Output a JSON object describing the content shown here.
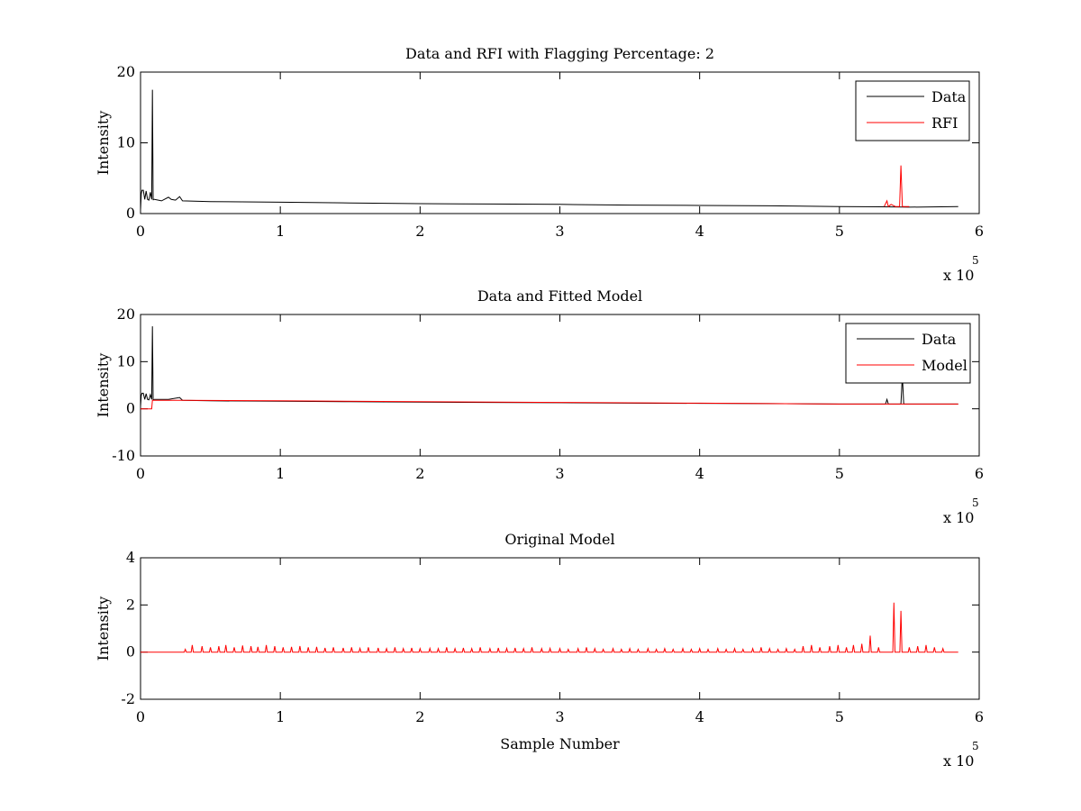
{
  "figure": {
    "background": "#ffffff"
  },
  "chart_data": [
    {
      "type": "line",
      "title": "Data and RFI with Flagging Percentage: 2",
      "xlabel": "",
      "ylabel": "Intensity",
      "xlim": [
        0,
        6
      ],
      "ylim": [
        0,
        20
      ],
      "xticks": [
        "0",
        "1",
        "2",
        "3",
        "4",
        "5",
        "6"
      ],
      "yticks": [
        "0",
        "10",
        "20"
      ],
      "x_multiplier": {
        "base": "x 10",
        "exponent": "5"
      },
      "legend": {
        "position": "top-right",
        "entries": [
          "Data",
          "RFI"
        ]
      },
      "series": [
        {
          "name": "Data",
          "color": "#000000",
          "x": [
            0,
            0.005,
            0.01,
            0.02,
            0.03,
            0.04,
            0.05,
            0.06,
            0.07,
            0.08,
            0.085,
            0.09,
            0.092,
            0.1,
            0.15,
            0.2,
            0.22,
            0.25,
            0.28,
            0.3,
            0.5,
            1.0,
            1.5,
            2.0,
            2.5,
            3.0,
            3.5,
            4.0,
            4.5,
            5.0,
            5.3,
            5.5,
            5.85
          ],
          "y": [
            0.5,
            2.8,
            3.3,
            3.3,
            2.0,
            3.2,
            2.0,
            1.9,
            3.0,
            2.0,
            17.5,
            1.9,
            2.0,
            2.0,
            1.8,
            2.3,
            2.0,
            1.9,
            2.4,
            1.8,
            1.7,
            1.6,
            1.5,
            1.4,
            1.35,
            1.3,
            1.2,
            1.15,
            1.1,
            1.0,
            0.95,
            0.9,
            1.0
          ]
        },
        {
          "name": "RFI",
          "color": "#ff0000",
          "x": [
            5.32,
            5.34,
            5.35,
            5.37,
            5.4,
            5.43,
            5.44,
            5.45,
            5.46,
            5.5
          ],
          "y": [
            1.0,
            1.8,
            1.0,
            1.3,
            1.0,
            1.0,
            6.8,
            1.0,
            1.0,
            1.0
          ]
        }
      ]
    },
    {
      "type": "line",
      "title": "Data and Fitted Model",
      "xlabel": "",
      "ylabel": "Intensity",
      "xlim": [
        0,
        6
      ],
      "ylim": [
        -10,
        20
      ],
      "xticks": [
        "0",
        "1",
        "2",
        "3",
        "4",
        "5",
        "6"
      ],
      "yticks": [
        "-10",
        "0",
        "10",
        "20"
      ],
      "x_multiplier": {
        "base": "x 10",
        "exponent": "5"
      },
      "legend": {
        "position": "top-right",
        "entries": [
          "Data",
          "Model"
        ]
      },
      "series": [
        {
          "name": "Data",
          "color": "#000000",
          "x": [
            0,
            0.005,
            0.01,
            0.02,
            0.03,
            0.04,
            0.05,
            0.06,
            0.07,
            0.08,
            0.085,
            0.09,
            0.1,
            0.2,
            0.28,
            0.3,
            0.5,
            1.0,
            1.5,
            2.0,
            2.5,
            3.0,
            3.5,
            4.0,
            4.5,
            5.0,
            5.33,
            5.34,
            5.35,
            5.44,
            5.45,
            5.46,
            5.85
          ],
          "y": [
            0.5,
            2.8,
            3.3,
            3.3,
            2.0,
            3.2,
            2.0,
            1.9,
            3.0,
            2.0,
            17.5,
            1.9,
            2.0,
            2.0,
            2.4,
            1.8,
            1.7,
            1.6,
            1.5,
            1.4,
            1.35,
            1.3,
            1.2,
            1.15,
            1.1,
            1.0,
            1.0,
            2.0,
            1.0,
            1.0,
            7.0,
            1.0,
            1.0
          ]
        },
        {
          "name": "Model",
          "color": "#ff0000",
          "x": [
            0,
            0.08,
            0.085,
            0.3,
            1.0,
            2.0,
            3.0,
            4.0,
            5.0,
            5.85
          ],
          "y": [
            0.0,
            0.0,
            1.8,
            1.8,
            1.7,
            1.5,
            1.35,
            1.2,
            1.0,
            1.0
          ]
        }
      ]
    },
    {
      "type": "line",
      "title": "Original Model",
      "xlabel": "Sample Number",
      "ylabel": "Intensity",
      "xlim": [
        0,
        6
      ],
      "ylim": [
        -2,
        4
      ],
      "xticks": [
        "0",
        "1",
        "2",
        "3",
        "4",
        "5",
        "6"
      ],
      "yticks": [
        "-2",
        "0",
        "2",
        "4"
      ],
      "x_multiplier": {
        "base": "x 10",
        "exponent": "5"
      },
      "series": [
        {
          "color": "#ff0000",
          "baseline": 0,
          "x_range": [
            0,
            5.85
          ],
          "peaks_x": [
            0.32,
            0.37,
            0.44,
            0.5,
            0.56,
            0.61,
            0.67,
            0.73,
            0.79,
            0.84,
            0.9,
            0.96,
            1.02,
            1.08,
            1.14,
            1.2,
            1.26,
            1.32,
            1.38,
            1.45,
            1.51,
            1.57,
            1.63,
            1.7,
            1.76,
            1.82,
            1.88,
            1.94,
            2.0,
            2.07,
            2.13,
            2.19,
            2.25,
            2.31,
            2.37,
            2.43,
            2.5,
            2.56,
            2.62,
            2.68,
            2.74,
            2.8,
            2.87,
            2.93,
            3.0,
            3.06,
            3.13,
            3.19,
            3.25,
            3.31,
            3.38,
            3.44,
            3.5,
            3.56,
            3.63,
            3.69,
            3.75,
            3.81,
            3.88,
            3.94,
            4.0,
            4.06,
            4.13,
            4.19,
            4.25,
            4.31,
            4.38,
            4.44,
            4.5,
            4.56,
            4.62,
            4.68,
            4.74,
            4.8,
            4.86,
            4.93,
            4.99,
            5.05,
            5.1,
            5.16,
            5.22,
            5.28,
            5.39,
            5.44,
            5.5,
            5.56,
            5.62,
            5.68,
            5.74
          ],
          "peaks_y": [
            0.12,
            0.3,
            0.25,
            0.2,
            0.25,
            0.3,
            0.2,
            0.28,
            0.25,
            0.22,
            0.3,
            0.25,
            0.2,
            0.22,
            0.26,
            0.2,
            0.22,
            0.18,
            0.2,
            0.18,
            0.2,
            0.16,
            0.2,
            0.18,
            0.15,
            0.2,
            0.15,
            0.18,
            0.15,
            0.16,
            0.15,
            0.2,
            0.15,
            0.18,
            0.15,
            0.2,
            0.15,
            0.18,
            0.16,
            0.18,
            0.15,
            0.2,
            0.15,
            0.16,
            0.15,
            0.12,
            0.15,
            0.2,
            0.15,
            0.12,
            0.15,
            0.12,
            0.15,
            0.12,
            0.15,
            0.12,
            0.15,
            0.12,
            0.15,
            0.12,
            0.15,
            0.12,
            0.15,
            0.12,
            0.15,
            0.12,
            0.15,
            0.2,
            0.15,
            0.12,
            0.15,
            0.12,
            0.25,
            0.3,
            0.2,
            0.25,
            0.3,
            0.2,
            0.3,
            0.35,
            0.7,
            0.2,
            2.1,
            1.75,
            0.2,
            0.25,
            0.3,
            0.2,
            0.15
          ]
        }
      ]
    }
  ]
}
